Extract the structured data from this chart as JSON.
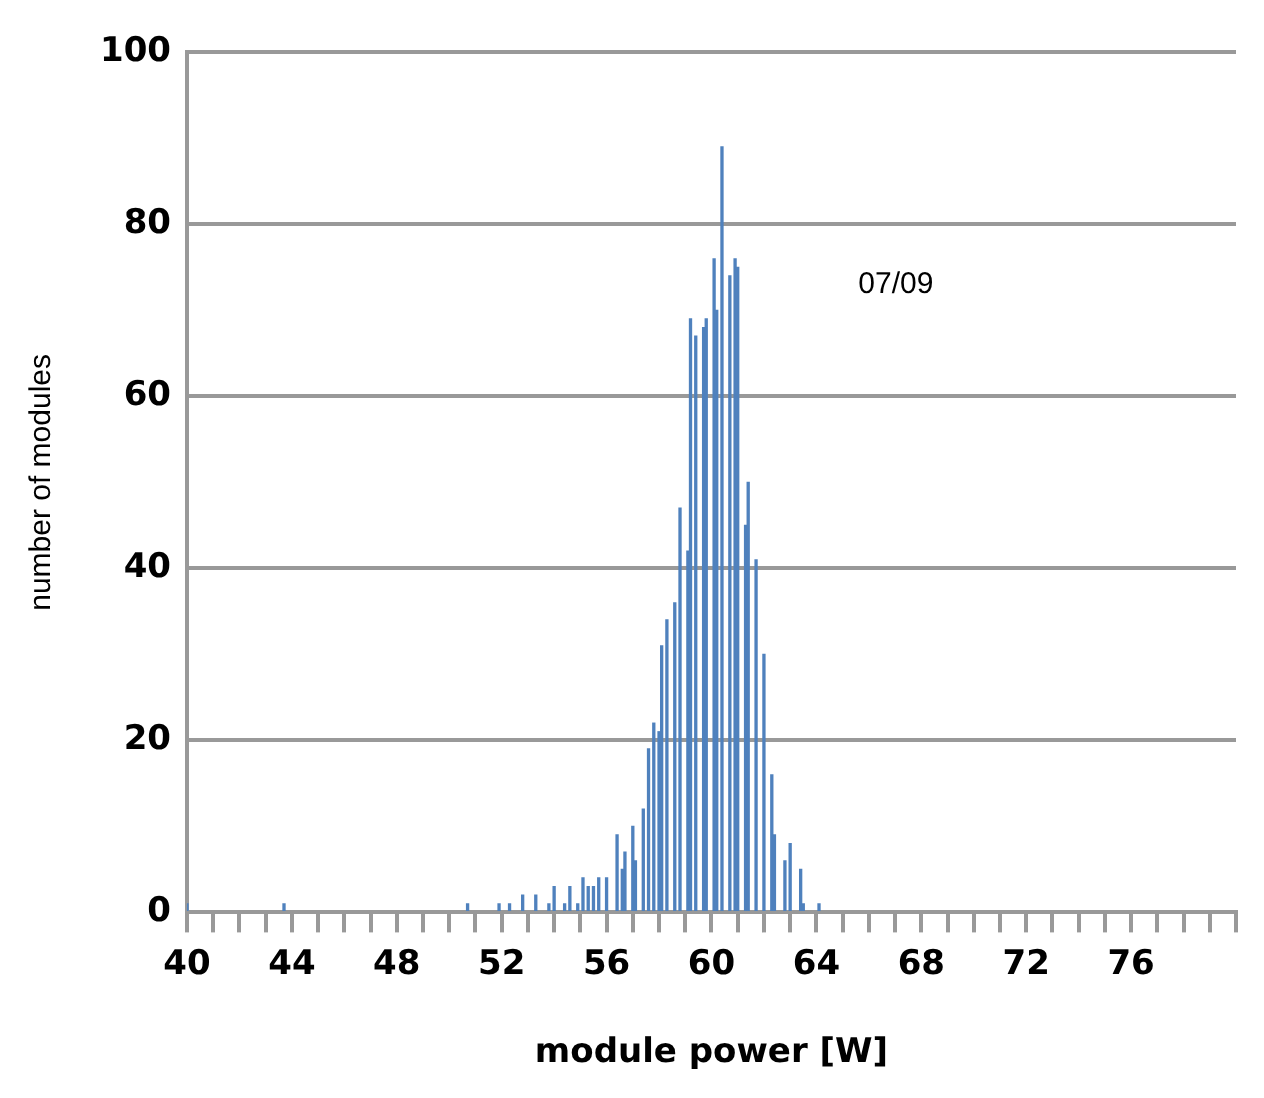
{
  "chart_data": {
    "type": "bar",
    "xlabel": "module power [W]",
    "ylabel": "number of modules",
    "annotations": [
      "07/09"
    ],
    "x": [
      40.0,
      43.7,
      50.7,
      51.9,
      52.3,
      52.8,
      53.3,
      53.8,
      54.0,
      54.4,
      54.6,
      54.9,
      55.1,
      55.3,
      55.5,
      55.7,
      56.0,
      56.4,
      56.6,
      56.7,
      57.0,
      57.1,
      57.4,
      57.6,
      57.8,
      58.0,
      58.1,
      58.3,
      58.6,
      58.8,
      59.1,
      59.2,
      59.4,
      59.7,
      59.8,
      60.1,
      60.2,
      60.4,
      60.7,
      60.9,
      61.0,
      61.3,
      61.4,
      61.7,
      62.0,
      62.3,
      62.4,
      62.8,
      63.0,
      63.4,
      63.5,
      64.1
    ],
    "values": [
      1,
      1,
      1,
      1,
      1,
      2,
      2,
      1,
      3,
      1,
      3,
      1,
      4,
      3,
      3,
      4,
      4,
      9,
      5,
      7,
      10,
      6,
      12,
      19,
      22,
      21,
      31,
      34,
      36,
      47,
      42,
      69,
      67,
      68,
      69,
      76,
      70,
      89,
      74,
      76,
      75,
      45,
      50,
      41,
      30,
      16,
      9,
      6,
      8,
      5,
      1,
      1
    ],
    "color": "#4f81bd",
    "xlim": [
      40,
      80
    ],
    "xticks": [
      40,
      {
        "value": 41,
        "label": null
      },
      {
        "value": 42,
        "label": null
      },
      {
        "value": 43,
        "label": null
      },
      44,
      {
        "value": 45,
        "label": null
      },
      {
        "value": 46,
        "label": null
      },
      {
        "value": 47,
        "label": null
      },
      48,
      {
        "value": 49,
        "label": null
      },
      {
        "value": 50,
        "label": null
      },
      {
        "value": 51,
        "label": null
      },
      52,
      {
        "value": 53,
        "label": null
      },
      {
        "value": 54,
        "label": null
      },
      {
        "value": 55,
        "label": null
      },
      56,
      {
        "value": 57,
        "label": null
      },
      {
        "value": 58,
        "label": null
      },
      {
        "value": 59,
        "label": null
      },
      60,
      {
        "value": 61,
        "label": null
      },
      {
        "value": 62,
        "label": null
      },
      {
        "value": 63,
        "label": null
      },
      64,
      {
        "value": 65,
        "label": null
      },
      {
        "value": 66,
        "label": null
      },
      {
        "value": 67,
        "label": null
      },
      68,
      {
        "value": 69,
        "label": null
      },
      {
        "value": 70,
        "label": null
      },
      {
        "value": 71,
        "label": null
      },
      72,
      {
        "value": 73,
        "label": null
      },
      {
        "value": 74,
        "label": null
      },
      {
        "value": 75,
        "label": null
      },
      76,
      {
        "value": 77,
        "label": null
      },
      {
        "value": 78,
        "label": null
      },
      {
        "value": 79,
        "label": null
      },
      {
        "value": 80,
        "label": null
      }
    ],
    "ylim": [
      0,
      100
    ],
    "yticks": [
      0,
      20,
      40,
      60,
      80,
      100
    ],
    "grid": "y"
  }
}
